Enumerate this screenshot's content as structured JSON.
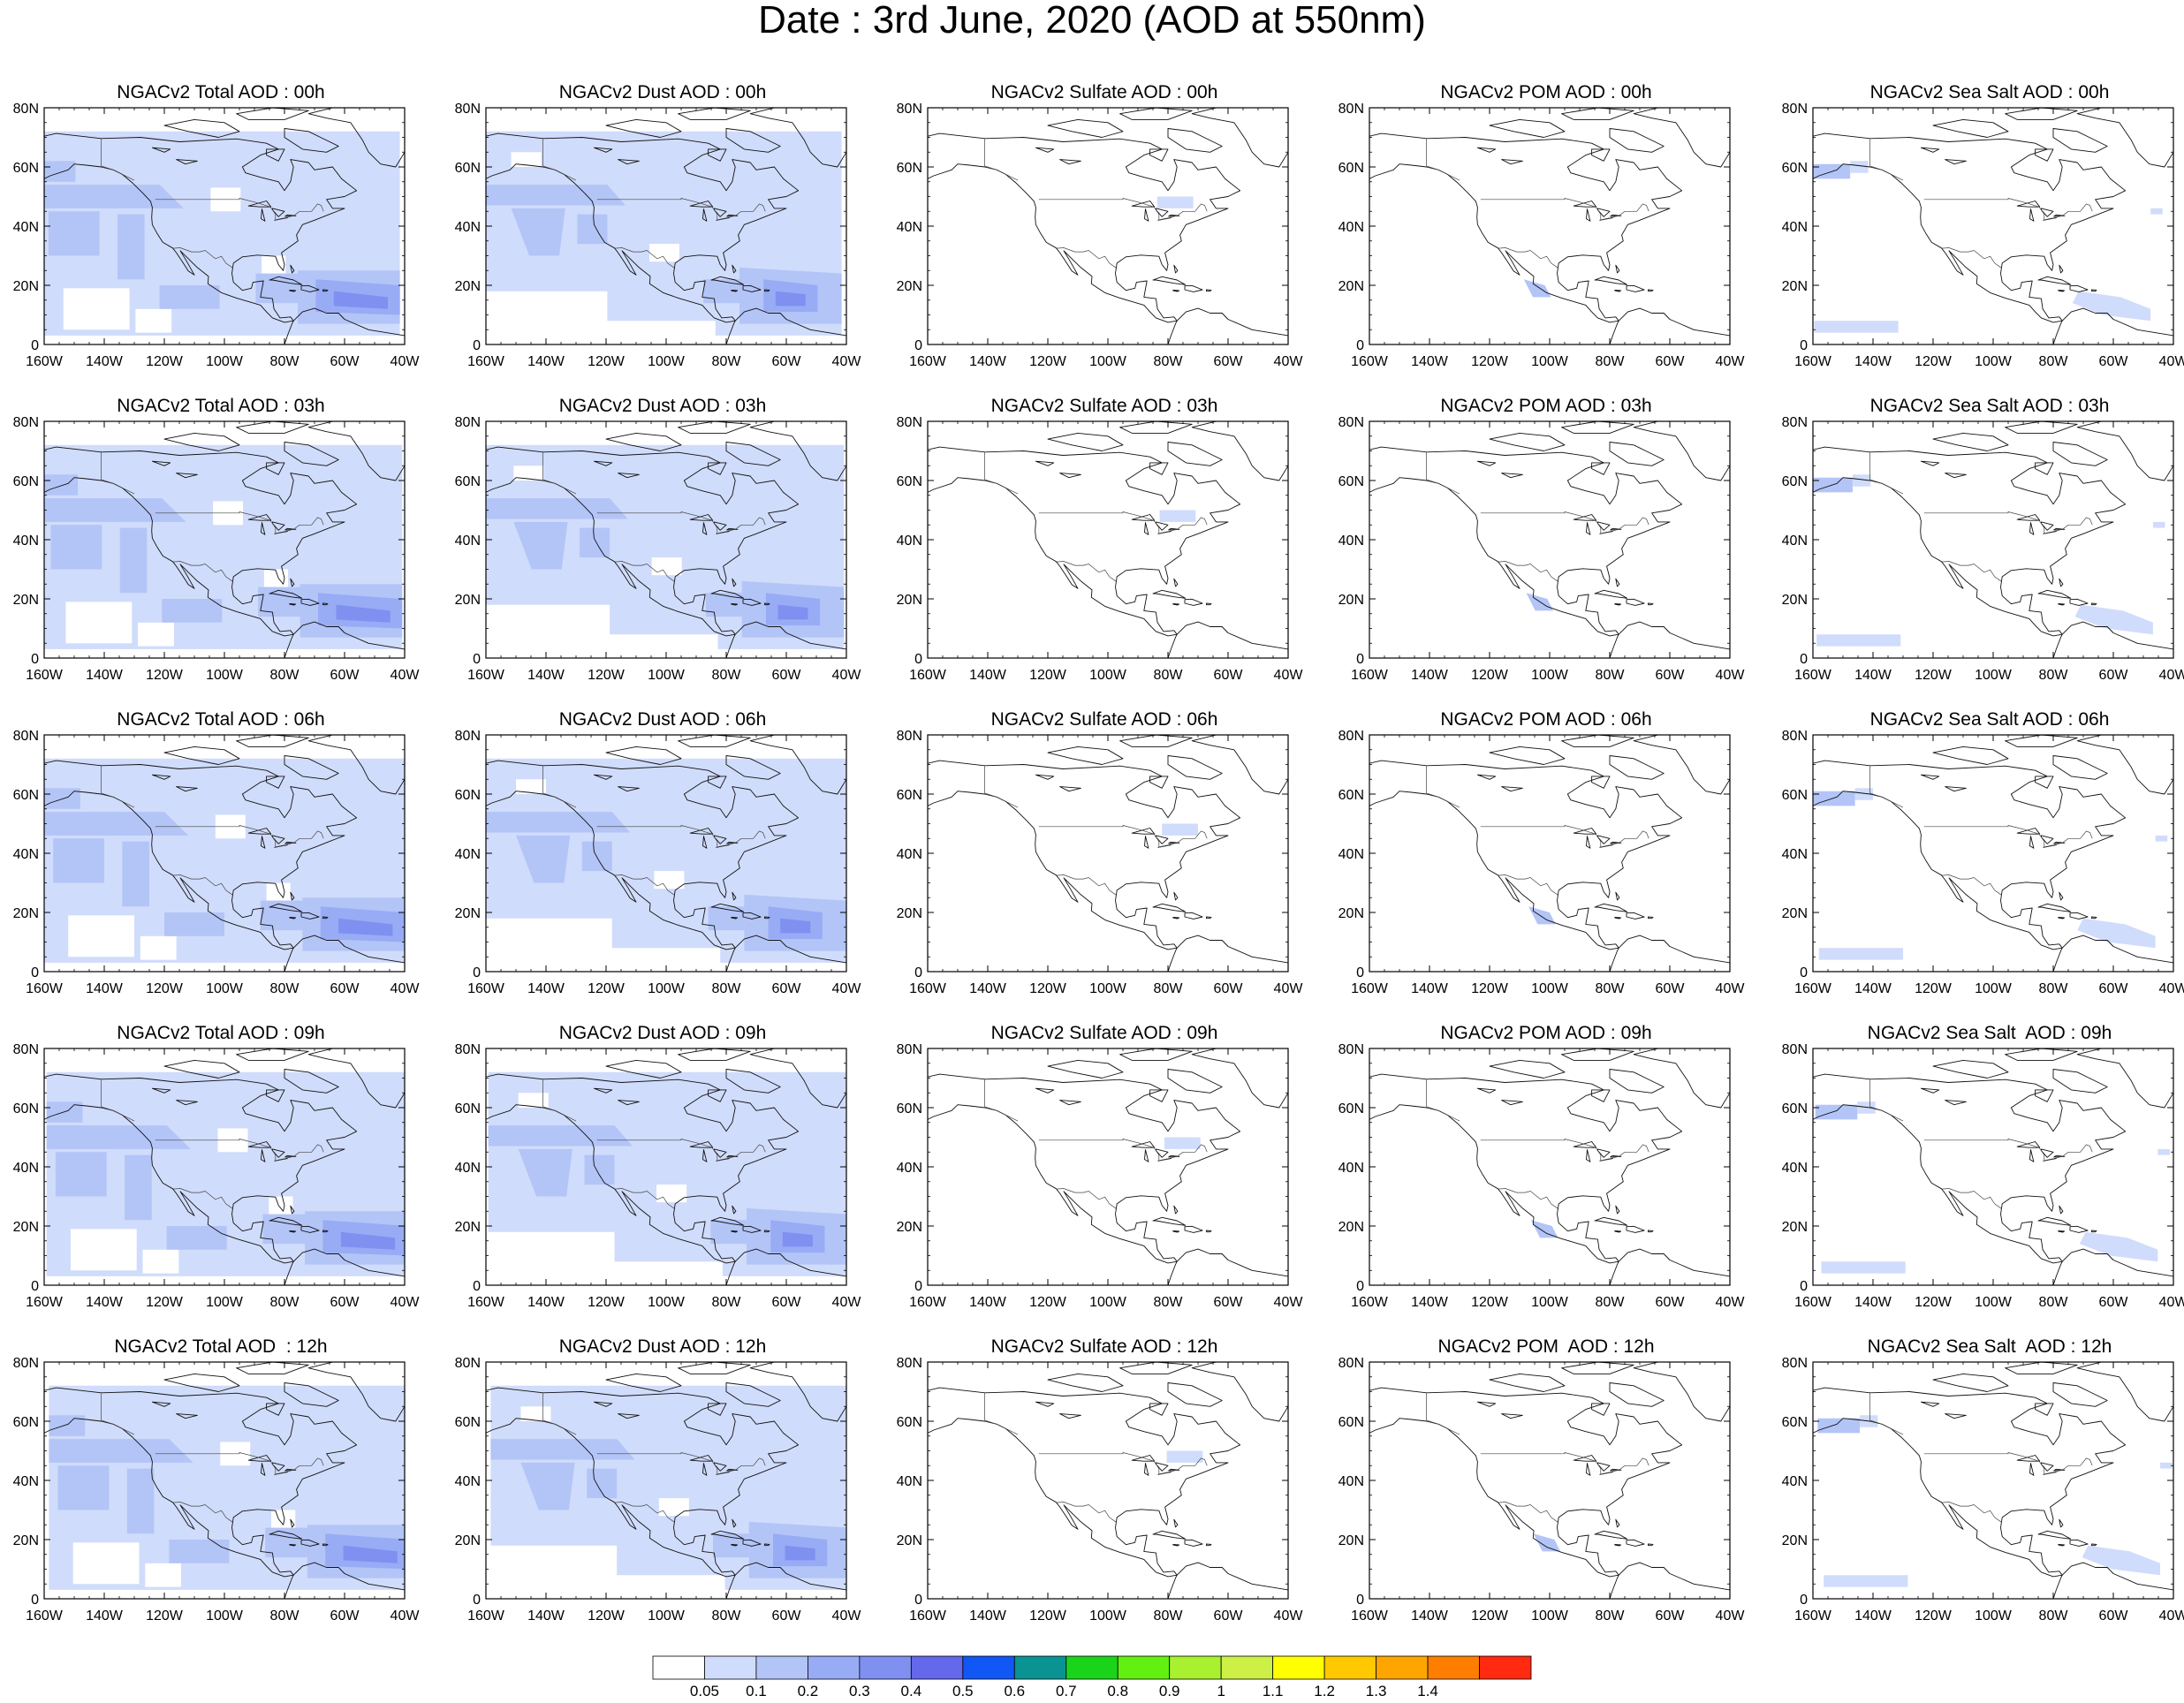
{
  "figure": {
    "title": "Date : 3rd June, 2020 (AOD at 550nm)"
  },
  "axes": {
    "lat_labels": [
      "0",
      "20N",
      "40N",
      "60N",
      "80N"
    ],
    "lon_labels": [
      "160W",
      "140W",
      "120W",
      "100W",
      "80W",
      "60W",
      "40W"
    ]
  },
  "panels": [
    {
      "title": "NGACv2 Total AOD : 00h",
      "field": "total"
    },
    {
      "title": "NGACv2 Dust AOD : 00h",
      "field": "dust"
    },
    {
      "title": "NGACv2 Sulfate AOD : 00h",
      "field": "sulfate"
    },
    {
      "title": "NGACv2 POM AOD : 00h",
      "field": "pom"
    },
    {
      "title": "NGACv2 Sea Salt AOD : 00h",
      "field": "seasalt"
    },
    {
      "title": "NGACv2 Total AOD : 03h",
      "field": "total"
    },
    {
      "title": "NGACv2 Dust AOD : 03h",
      "field": "dust"
    },
    {
      "title": "NGACv2 Sulfate AOD : 03h",
      "field": "sulfate"
    },
    {
      "title": "NGACv2 POM AOD : 03h",
      "field": "pom"
    },
    {
      "title": "NGACv2 Sea Salt AOD : 03h",
      "field": "seasalt"
    },
    {
      "title": "NGACv2 Total AOD : 06h",
      "field": "total"
    },
    {
      "title": "NGACv2 Dust AOD : 06h",
      "field": "dust"
    },
    {
      "title": "NGACv2 Sulfate AOD : 06h",
      "field": "sulfate"
    },
    {
      "title": "NGACv2 POM AOD : 06h",
      "field": "pom"
    },
    {
      "title": "NGACv2 Sea Salt AOD : 06h",
      "field": "seasalt"
    },
    {
      "title": "NGACv2 Total AOD : 09h",
      "field": "total"
    },
    {
      "title": "NGACv2 Dust AOD : 09h",
      "field": "dust"
    },
    {
      "title": "NGACv2 Sulfate AOD : 09h",
      "field": "sulfate"
    },
    {
      "title": "NGACv2 POM AOD : 09h",
      "field": "pom"
    },
    {
      "title": "NGACv2 Sea Salt  AOD : 09h",
      "field": "seasalt"
    },
    {
      "title": "NGACv2 Total AOD  : 12h",
      "field": "total"
    },
    {
      "title": "NGACv2 Dust AOD : 12h",
      "field": "dust"
    },
    {
      "title": "NGACv2 Sulfate AOD : 12h",
      "field": "sulfate"
    },
    {
      "title": "NGACv2 POM  AOD : 12h",
      "field": "pom"
    },
    {
      "title": "NGACv2 Sea Salt  AOD : 12h",
      "field": "seasalt"
    }
  ],
  "colorbar": {
    "labels": [
      "0.05",
      "0.1",
      "0.2",
      "0.3",
      "0.4",
      "0.5",
      "0.6",
      "0.7",
      "0.8",
      "0.9",
      "1",
      "1.1",
      "1.2",
      "1.3",
      "1.4"
    ],
    "colors": [
      "#ffffff",
      "#d0dcfb",
      "#b3c4f7",
      "#98abf5",
      "#7f90f0",
      "#6468ea",
      "#1057f5",
      "#0a9393",
      "#1ad41a",
      "#61f00f",
      "#a8f030",
      "#ccf045",
      "#ffff00",
      "#ffc800",
      "#ffa500",
      "#ff7e00",
      "#ff2a10"
    ]
  }
}
